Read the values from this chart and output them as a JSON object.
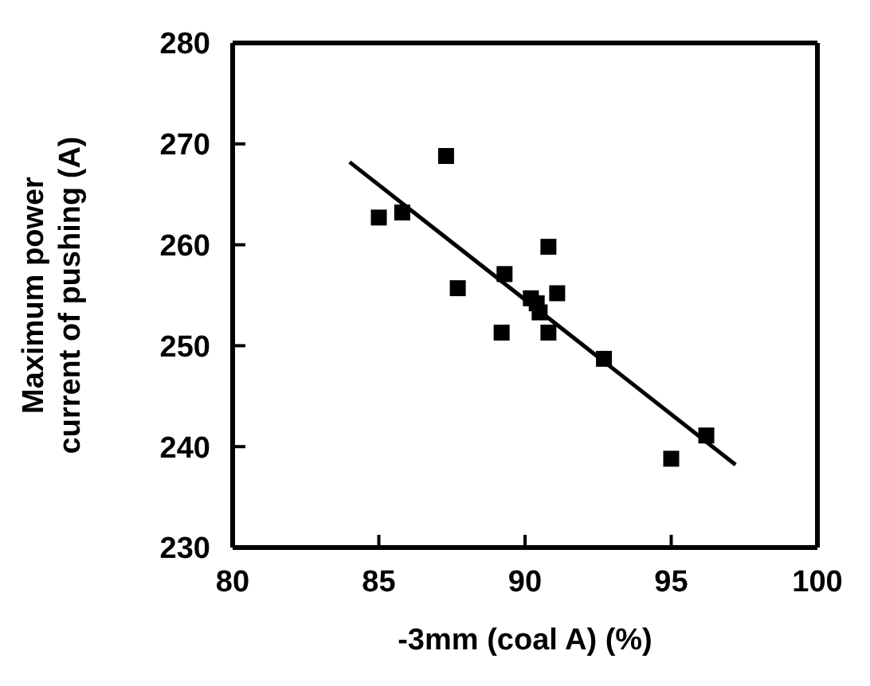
{
  "chart_data": {
    "type": "scatter",
    "xlabel": "-3mm (coal A) (%)",
    "ylabel": "Maximum power current of pushing (A)",
    "xlim": [
      80,
      100
    ],
    "xticks": [
      80,
      85,
      90,
      95,
      100
    ],
    "ylim": [
      230,
      280
    ],
    "yticks": [
      230,
      240,
      250,
      260,
      270,
      280
    ],
    "grid": false,
    "legend": false,
    "marker": "square",
    "series": [
      {
        "color": "#000000",
        "x": [
          85,
          85.8,
          87.3,
          87.7,
          89.3,
          89.2,
          90.2,
          90.4,
          90.5,
          90.8,
          91.1,
          90.8,
          92.7,
          95.0,
          96.2
        ],
        "values": [
          262.7,
          263.2,
          268.8,
          255.7,
          257.1,
          251.3,
          254.7,
          254.2,
          253.3,
          259.8,
          255.2,
          251.3,
          248.7,
          238.8,
          241.1
        ]
      },
      {
        "type": "line",
        "color": "#000000",
        "x": [
          84,
          97.2
        ],
        "values": [
          268.2,
          238.2
        ],
        "marker": "none",
        "line_style": "solid"
      }
    ]
  }
}
